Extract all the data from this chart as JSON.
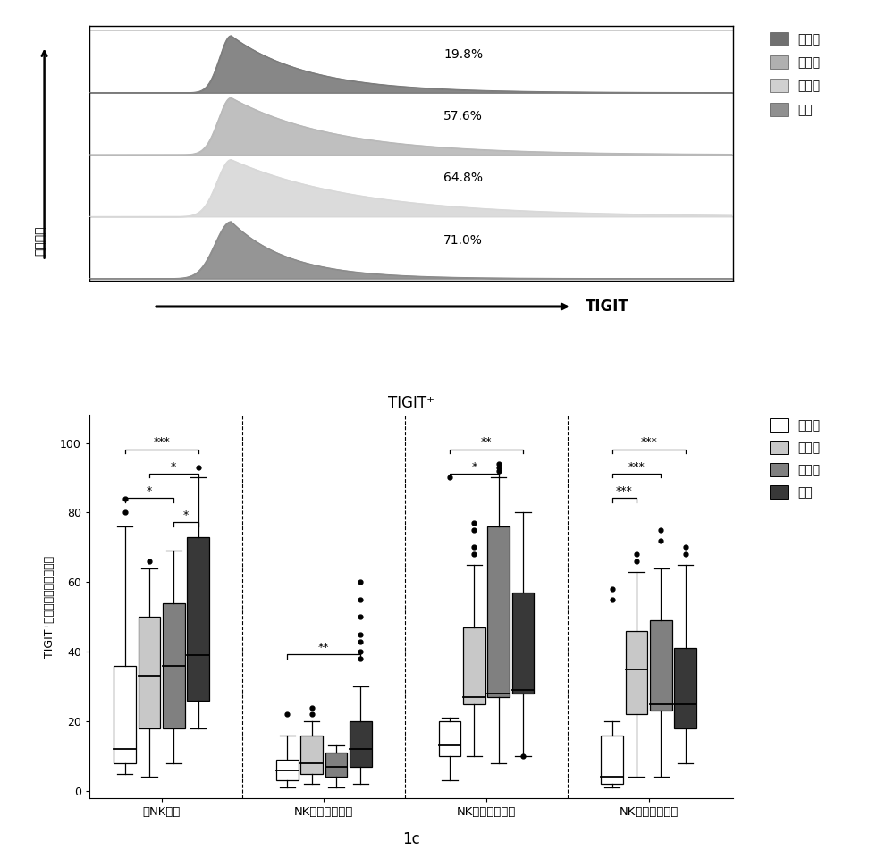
{
  "top_panel": {
    "percentages": [
      "19.8%",
      "57.6%",
      "64.8%",
      "71.0%"
    ],
    "trace_colors": [
      "#7a7a7a",
      "#b8b8b8",
      "#d8d8d8",
      "#8a8a8a"
    ],
    "legend_labels": [
      "正常人",
      "慢乙肘",
      "肝硬化",
      "肝癌"
    ],
    "legend_colors": [
      "#707070",
      "#b0b0b0",
      "#d0d0d0",
      "#909090"
    ],
    "ylabel": "细胞计数",
    "xlabel": "TIGIT"
  },
  "bottom_panel": {
    "title": "TIGIT⁺",
    "ylabel": "TIGIT⁺细胞在各亚群中的比例",
    "groups": [
      "总NK细胞",
      "NK细胞调节亚群",
      "NK细胞杀伤亚群",
      "NK细胞耗竭亚群"
    ],
    "legend_labels": [
      "正常人",
      "慢乙肘",
      "肝硬化",
      "肝癌"
    ],
    "colors": [
      "#ffffff",
      "#c8c8c8",
      "#808080",
      "#383838"
    ],
    "yticks": [
      0,
      20,
      40,
      60,
      80,
      100
    ],
    "box_data": {
      "总NK细胞": {
        "正常人": {
          "q1": 8,
          "median": 12,
          "q3": 36,
          "whislo": 5,
          "whishi": 76,
          "fliers": [
            80,
            84
          ]
        },
        "慢乙肘": {
          "q1": 18,
          "median": 33,
          "q3": 50,
          "whislo": 4,
          "whishi": 64,
          "fliers": [
            66
          ]
        },
        "肝硬化": {
          "q1": 18,
          "median": 36,
          "q3": 54,
          "whislo": 8,
          "whishi": 69,
          "fliers": []
        },
        "肝癌": {
          "q1": 26,
          "median": 39,
          "q3": 73,
          "whislo": 18,
          "whishi": 90,
          "fliers": [
            93
          ]
        }
      },
      "NK细胞调节亚群": {
        "正常人": {
          "q1": 3,
          "median": 6,
          "q3": 9,
          "whislo": 1,
          "whishi": 16,
          "fliers": [
            22
          ]
        },
        "慢乙肘": {
          "q1": 5,
          "median": 8,
          "q3": 16,
          "whislo": 2,
          "whishi": 20,
          "fliers": [
            22,
            24
          ]
        },
        "肝硬化": {
          "q1": 4,
          "median": 7,
          "q3": 11,
          "whislo": 1,
          "whishi": 13,
          "fliers": []
        },
        "肝癌": {
          "q1": 7,
          "median": 12,
          "q3": 20,
          "whislo": 2,
          "whishi": 30,
          "fliers": [
            38,
            40,
            43,
            45,
            50,
            55,
            60
          ]
        }
      },
      "NK细胞杀伤亚群": {
        "正常人": {
          "q1": 10,
          "median": 13,
          "q3": 20,
          "whislo": 3,
          "whishi": 21,
          "fliers": [
            90
          ]
        },
        "慢乙肘": {
          "q1": 25,
          "median": 27,
          "q3": 47,
          "whislo": 10,
          "whishi": 65,
          "fliers": [
            68,
            70,
            75,
            77
          ]
        },
        "肝硬化": {
          "q1": 27,
          "median": 28,
          "q3": 76,
          "whislo": 8,
          "whishi": 90,
          "fliers": [
            92,
            93,
            94
          ]
        },
        "肝癌": {
          "q1": 28,
          "median": 29,
          "q3": 57,
          "whislo": 10,
          "whishi": 80,
          "fliers": [
            10
          ]
        }
      },
      "NK细胞耗竭亚群": {
        "正常人": {
          "q1": 2,
          "median": 4,
          "q3": 16,
          "whislo": 1,
          "whishi": 20,
          "fliers": [
            55,
            58
          ]
        },
        "慢乙肘": {
          "q1": 22,
          "median": 35,
          "q3": 46,
          "whislo": 4,
          "whishi": 63,
          "fliers": [
            66,
            68
          ]
        },
        "肝硬化": {
          "q1": 23,
          "median": 25,
          "q3": 49,
          "whislo": 4,
          "whishi": 64,
          "fliers": [
            72,
            75
          ]
        },
        "肝癌": {
          "q1": 18,
          "median": 25,
          "q3": 41,
          "whislo": 8,
          "whishi": 65,
          "fliers": [
            68,
            70
          ]
        }
      }
    },
    "significance": {
      "总NK细胞": [
        {
          "from": 0,
          "to": 3,
          "y": 97,
          "text": "***"
        },
        {
          "from": 1,
          "to": 3,
          "y": 90,
          "text": "*"
        },
        {
          "from": 0,
          "to": 2,
          "y": 83,
          "text": "*"
        },
        {
          "from": 2,
          "to": 3,
          "y": 76,
          "text": "*"
        }
      ],
      "NK细胞调节亚群": [
        {
          "from": 0,
          "to": 3,
          "y": 38,
          "text": "**"
        }
      ],
      "NK细胞杀伤亚群": [
        {
          "from": 0,
          "to": 3,
          "y": 97,
          "text": "**"
        },
        {
          "from": 0,
          "to": 2,
          "y": 90,
          "text": "*"
        }
      ],
      "NK细胞耗竭亚群": [
        {
          "from": 0,
          "to": 3,
          "y": 97,
          "text": "***"
        },
        {
          "from": 0,
          "to": 2,
          "y": 90,
          "text": "***"
        },
        {
          "from": 0,
          "to": 1,
          "y": 83,
          "text": "***"
        }
      ]
    }
  },
  "figure_label": "1c"
}
